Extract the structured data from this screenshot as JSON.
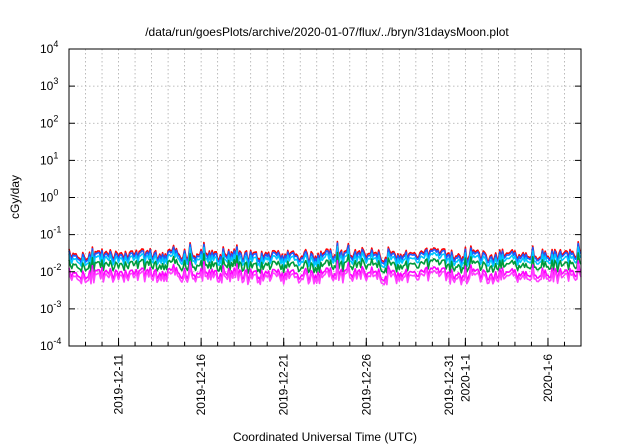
{
  "chart_data": {
    "type": "line",
    "title": "/data/run/goesPlots/archive/2020-01-07/flux/../bryn/31daysMoon.plot",
    "xlabel": "Coordinated Universal Time (UTC)",
    "ylabel": "cGy/day",
    "yscale": "log",
    "ylim": [
      0.0001,
      10000
    ],
    "xlim": [
      "2019-12-08",
      "2020-01-08"
    ],
    "grid": true,
    "legend": "none",
    "y_ticks": [
      {
        "base": "10",
        "exp": "-4"
      },
      {
        "base": "10",
        "exp": "-3"
      },
      {
        "base": "10",
        "exp": "-2"
      },
      {
        "base": "10",
        "exp": "-1"
      },
      {
        "base": "10",
        "exp": "0"
      },
      {
        "base": "10",
        "exp": "1"
      },
      {
        "base": "10",
        "exp": "2"
      },
      {
        "base": "10",
        "exp": "3"
      },
      {
        "base": "10",
        "exp": "4"
      }
    ],
    "x_ticks": [
      {
        "date": "2019-12-11",
        "label": "2019-12-11"
      },
      {
        "date": "2019-12-16",
        "label": "2019-12-16"
      },
      {
        "date": "2019-12-21",
        "label": "2019-12-21"
      },
      {
        "date": "2019-12-26",
        "label": "2019-12-26"
      },
      {
        "date": "2019-12-31",
        "label": "2019-12-31"
      },
      {
        "date": "2020-01-01",
        "label": "2020-1-1"
      },
      {
        "date": "2020-01-06",
        "label": "2020-1-6"
      }
    ],
    "series": [
      {
        "color": "#ff0000",
        "values": [
          0.042,
          0.028,
          0.036,
          0.033,
          0.039,
          0.031,
          0.036,
          0.038,
          0.034,
          0.032,
          0.035,
          0.03,
          0.033,
          0.031,
          0.036,
          0.032,
          0.038,
          0.034,
          0.04,
          0.031,
          0.031,
          0.035,
          0.038,
          0.034,
          0.031,
          0.036,
          0.033,
          0.035,
          0.031,
          0.037,
          0.034,
          0.036
        ]
      },
      {
        "color": "#1a5cff",
        "values": [
          0.036,
          0.024,
          0.031,
          0.028,
          0.033,
          0.027,
          0.031,
          0.033,
          0.029,
          0.027,
          0.03,
          0.026,
          0.028,
          0.027,
          0.031,
          0.027,
          0.033,
          0.029,
          0.034,
          0.026,
          0.027,
          0.03,
          0.033,
          0.029,
          0.026,
          0.031,
          0.028,
          0.03,
          0.027,
          0.032,
          0.029,
          0.031
        ]
      },
      {
        "color": "#00c6ff",
        "values": [
          0.028,
          0.019,
          0.024,
          0.022,
          0.026,
          0.021,
          0.024,
          0.026,
          0.023,
          0.021,
          0.023,
          0.02,
          0.022,
          0.021,
          0.024,
          0.021,
          0.026,
          0.022,
          0.027,
          0.02,
          0.021,
          0.023,
          0.026,
          0.022,
          0.02,
          0.024,
          0.022,
          0.023,
          0.021,
          0.025,
          0.022,
          0.024
        ]
      },
      {
        "color": "#009a3a",
        "values": [
          0.019,
          0.013,
          0.016,
          0.015,
          0.018,
          0.014,
          0.016,
          0.017,
          0.015,
          0.014,
          0.016,
          0.013,
          0.015,
          0.014,
          0.016,
          0.014,
          0.017,
          0.015,
          0.018,
          0.014,
          0.014,
          0.016,
          0.017,
          0.015,
          0.014,
          0.016,
          0.015,
          0.016,
          0.014,
          0.017,
          0.015,
          0.016
        ]
      },
      {
        "color": "#ff00ff",
        "values": [
          0.011,
          0.0075,
          0.0095,
          0.0088,
          0.01,
          0.0082,
          0.0094,
          0.0099,
          0.0089,
          0.0084,
          0.0092,
          0.0079,
          0.0087,
          0.0082,
          0.0095,
          0.0084,
          0.01,
          0.0088,
          0.0105,
          0.0081,
          0.0082,
          0.0092,
          0.0099,
          0.0088,
          0.0081,
          0.0094,
          0.0087,
          0.0092,
          0.0082,
          0.0097,
          0.0088,
          0.0094
        ]
      },
      {
        "color": "#ff40ff",
        "values": [
          0.0085,
          0.0058,
          0.0073,
          0.0068,
          0.0079,
          0.0063,
          0.0072,
          0.0076,
          0.0069,
          0.0065,
          0.0071,
          0.0061,
          0.0067,
          0.0063,
          0.0073,
          0.0065,
          0.0078,
          0.0068,
          0.0081,
          0.0062,
          0.0063,
          0.0071,
          0.0076,
          0.0068,
          0.0062,
          0.0072,
          0.0067,
          0.0071,
          0.0063,
          0.0075,
          0.0068,
          0.0072
        ]
      }
    ]
  }
}
